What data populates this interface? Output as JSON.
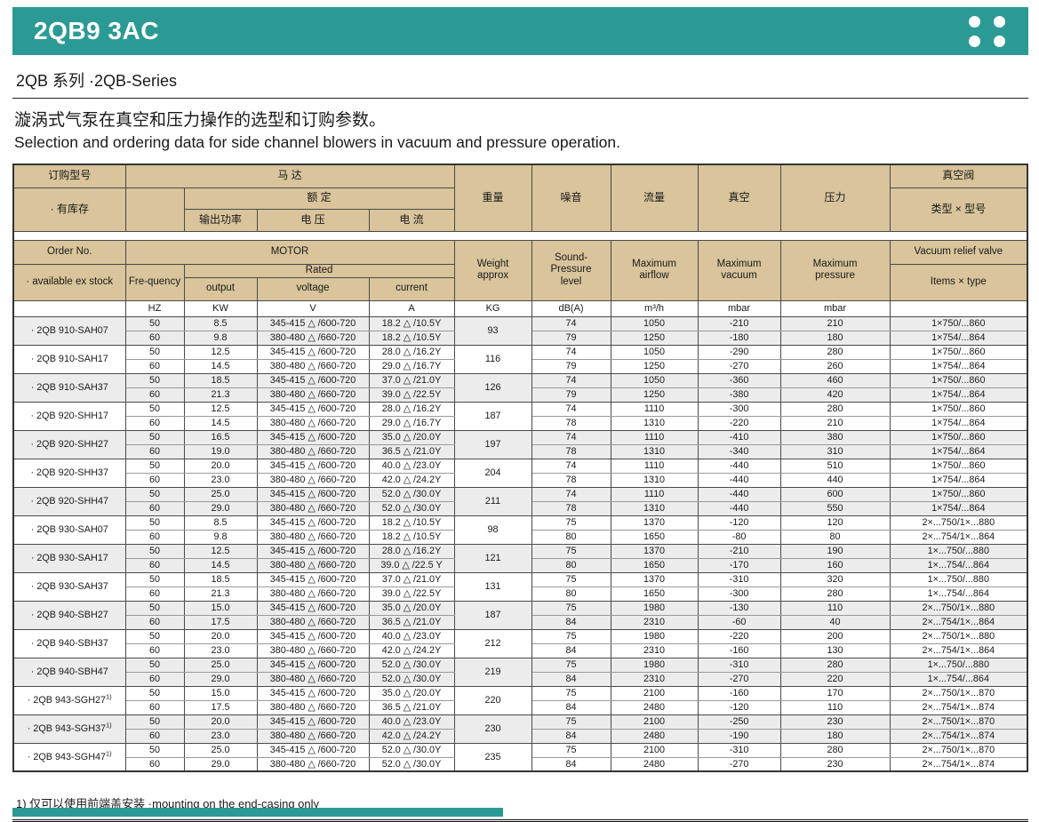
{
  "page": {
    "title": "2QB9 3AC",
    "series": "2QB 系列 ·2QB-Series",
    "intro_zh": "漩涡式气泵在真空和压力操作的选型和订购参数。",
    "intro_en": "Selection and ordering data for side channel blowers in vacuum and pressure operation.",
    "footnote": "1) 仅可以使用前端盖安装 ·mounting on the end-casing only"
  },
  "colors": {
    "teal": "#2c9a94",
    "header_tan": "#d9c49c",
    "row_shade": "#ececec"
  },
  "table": {
    "header_zh": {
      "order": "订购型号",
      "stock": "· 有库存",
      "motor": "马  达",
      "rated": "额  定",
      "output": "输出功率",
      "voltage": "电  压",
      "current": "电  流",
      "weight": "重量",
      "noise": "噪音",
      "flow": "流量",
      "vacuum": "真空",
      "pressure": "压力",
      "valve": "真空阀",
      "valve_type": "类型 × 型号"
    },
    "header_en": {
      "order": "Order No.",
      "stock": "· available ex stock",
      "frequency": "Fre-quency",
      "motor": "MOTOR",
      "rated": "Rated",
      "output": "output",
      "voltage": "voltage",
      "current": "current",
      "weight": "Weight\napprox",
      "noise": "Sound-\nPressure\nlevel",
      "flow": "Maximum\nairflow",
      "vacuum": "Maximum\nvacuum",
      "pressure": "Maximum\npressure",
      "valve": "Vacuum relief valve",
      "valve_type": "Items × type"
    },
    "units": [
      "",
      "HZ",
      "KW",
      "V",
      "A",
      "KG",
      "dB(A)",
      "m³/h",
      "mbar",
      "mbar",
      ""
    ],
    "models": [
      {
        "name": "· 2QB 910-SAH07",
        "sup": "",
        "weight": "93",
        "shaded": true,
        "rows": [
          {
            "freq": "50",
            "kw": "8.5",
            "volt": "345-415 △ /600-720",
            "amp": "18.2 △ /10.5Y",
            "db": "74",
            "flow": "1050",
            "vac": "-210",
            "press": "210",
            "valve": "1×750/...860"
          },
          {
            "freq": "60",
            "kw": "9.8",
            "volt": "380-480 △ /660-720",
            "amp": "18.2 △ /10.5Y",
            "db": "79",
            "flow": "1250",
            "vac": "-180",
            "press": "180",
            "valve": "1×754/...864"
          }
        ]
      },
      {
        "name": "· 2QB 910-SAH17",
        "sup": "",
        "weight": "116",
        "shaded": false,
        "rows": [
          {
            "freq": "50",
            "kw": "12.5",
            "volt": "345-415 △ /600-720",
            "amp": "28.0 △ /16.2Y",
            "db": "74",
            "flow": "1050",
            "vac": "-290",
            "press": "280",
            "valve": "1×750/...860"
          },
          {
            "freq": "60",
            "kw": "14.5",
            "volt": "380-480 △ /660-720",
            "amp": "29.0 △ /16.7Y",
            "db": "79",
            "flow": "1250",
            "vac": "-270",
            "press": "260",
            "valve": "1×754/...864"
          }
        ]
      },
      {
        "name": "· 2QB 910-SAH37",
        "sup": "",
        "weight": "126",
        "shaded": true,
        "rows": [
          {
            "freq": "50",
            "kw": "18.5",
            "volt": "345-415 △ /600-720",
            "amp": "37.0 △ /21.0Y",
            "db": "74",
            "flow": "1050",
            "vac": "-360",
            "press": "460",
            "valve": "1×750/...860"
          },
          {
            "freq": "60",
            "kw": "21.3",
            "volt": "380-480 △ /660-720",
            "amp": "39.0 △ /22.5Y",
            "db": "79",
            "flow": "1250",
            "vac": "-380",
            "press": "420",
            "valve": "1×754/...864"
          }
        ]
      },
      {
        "name": "· 2QB 920-SHH17",
        "sup": "",
        "weight": "187",
        "shaded": false,
        "rows": [
          {
            "freq": "50",
            "kw": "12.5",
            "volt": "345-415 △ /600-720",
            "amp": "28.0 △ /16.2Y",
            "db": "74",
            "flow": "1110",
            "vac": "-300",
            "press": "280",
            "valve": "1×750/...860"
          },
          {
            "freq": "60",
            "kw": "14.5",
            "volt": "380-480 △ /660-720",
            "amp": "29.0 △ /16.7Y",
            "db": "78",
            "flow": "1310",
            "vac": "-220",
            "press": "210",
            "valve": "1×754/...864"
          }
        ]
      },
      {
        "name": "· 2QB 920-SHH27",
        "sup": "",
        "weight": "197",
        "shaded": true,
        "rows": [
          {
            "freq": "50",
            "kw": "16.5",
            "volt": "345-415 △ /600-720",
            "amp": "35.0 △ /20.0Y",
            "db": "74",
            "flow": "1110",
            "vac": "-410",
            "press": "380",
            "valve": "1×750/...860"
          },
          {
            "freq": "60",
            "kw": "19.0",
            "volt": "380-480 △ /660-720",
            "amp": "36.5 △ /21.0Y",
            "db": "78",
            "flow": "1310",
            "vac": "-340",
            "press": "310",
            "valve": "1×754/...864"
          }
        ]
      },
      {
        "name": "· 2QB 920-SHH37",
        "sup": "",
        "weight": "204",
        "shaded": false,
        "rows": [
          {
            "freq": "50",
            "kw": "20.0",
            "volt": "345-415 △ /600-720",
            "amp": "40.0 △ /23.0Y",
            "db": "74",
            "flow": "1110",
            "vac": "-440",
            "press": "510",
            "valve": "1×750/...860"
          },
          {
            "freq": "60",
            "kw": "23.0",
            "volt": "380-480 △ /660-720",
            "amp": "42.0 △ /24.2Y",
            "db": "78",
            "flow": "1310",
            "vac": "-440",
            "press": "440",
            "valve": "1×754/...864"
          }
        ]
      },
      {
        "name": "· 2QB 920-SHH47",
        "sup": "",
        "weight": "211",
        "shaded": true,
        "rows": [
          {
            "freq": "50",
            "kw": "25.0",
            "volt": "345-415 △ /600-720",
            "amp": "52.0 △ /30.0Y",
            "db": "74",
            "flow": "1110",
            "vac": "-440",
            "press": "600",
            "valve": "1×750/...860"
          },
          {
            "freq": "60",
            "kw": "29.0",
            "volt": "380-480 △ /660-720",
            "amp": "52.0 △ /30.0Y",
            "db": "78",
            "flow": "1310",
            "vac": "-440",
            "press": "550",
            "valve": "1×754/...864"
          }
        ]
      },
      {
        "name": "· 2QB 930-SAH07",
        "sup": "",
        "weight": "98",
        "shaded": false,
        "rows": [
          {
            "freq": "50",
            "kw": "8.5",
            "volt": "345-415 △ /600-720",
            "amp": "18.2 △ /10.5Y",
            "db": "75",
            "flow": "1370",
            "vac": "-120",
            "press": "120",
            "valve": "2×...750/1×...880"
          },
          {
            "freq": "60",
            "kw": "9.8",
            "volt": "380-480 △ /660-720",
            "amp": "18.2 △ /10.5Y",
            "db": "80",
            "flow": "1650",
            "vac": "-80",
            "press": "80",
            "valve": "2×...754/1×...864"
          }
        ]
      },
      {
        "name": "· 2QB 930-SAH17",
        "sup": "",
        "weight": "121",
        "shaded": true,
        "rows": [
          {
            "freq": "50",
            "kw": "12.5",
            "volt": "345-415 △ /600-720",
            "amp": "28.0 △ /16.2Y",
            "db": "75",
            "flow": "1370",
            "vac": "-210",
            "press": "190",
            "valve": "1×...750/...880"
          },
          {
            "freq": "60",
            "kw": "14.5",
            "volt": "380-480 △ /660-720",
            "amp": "39.0 △ /22.5 Y",
            "db": "80",
            "flow": "1650",
            "vac": "-170",
            "press": "160",
            "valve": "1×...754/...864"
          }
        ]
      },
      {
        "name": "· 2QB 930-SAH37",
        "sup": "",
        "weight": "131",
        "shaded": false,
        "rows": [
          {
            "freq": "50",
            "kw": "18.5",
            "volt": "345-415 △ /600-720",
            "amp": "37.0 △ /21.0Y",
            "db": "75",
            "flow": "1370",
            "vac": "-310",
            "press": "320",
            "valve": "1×...750/...880"
          },
          {
            "freq": "60",
            "kw": "21.3",
            "volt": "380-480 △ /660-720",
            "amp": "39.0 △ /22.5Y",
            "db": "80",
            "flow": "1650",
            "vac": "-300",
            "press": "280",
            "valve": "1×...754/...864"
          }
        ]
      },
      {
        "name": "· 2QB 940-SBH27",
        "sup": "",
        "weight": "187",
        "shaded": true,
        "rows": [
          {
            "freq": "50",
            "kw": "15.0",
            "volt": "345-415 △ /600-720",
            "amp": "35.0 △ /20.0Y",
            "db": "75",
            "flow": "1980",
            "vac": "-130",
            "press": "110",
            "valve": "2×...750/1×...880"
          },
          {
            "freq": "60",
            "kw": "17.5",
            "volt": "380-480 △ /660-720",
            "amp": "36.5 △ /21.0Y",
            "db": "84",
            "flow": "2310",
            "vac": "-60",
            "press": "40",
            "valve": "2×...754/1×...864"
          }
        ]
      },
      {
        "name": "· 2QB 940-SBH37",
        "sup": "",
        "weight": "212",
        "shaded": false,
        "rows": [
          {
            "freq": "50",
            "kw": "20.0",
            "volt": "345-415 △ /600-720",
            "amp": "40.0 △ /23.0Y",
            "db": "75",
            "flow": "1980",
            "vac": "-220",
            "press": "200",
            "valve": "2×...750/1×...880"
          },
          {
            "freq": "60",
            "kw": "23.0",
            "volt": "380-480 △ /660-720",
            "amp": "42.0 △ /24.2Y",
            "db": "84",
            "flow": "2310",
            "vac": "-160",
            "press": "130",
            "valve": "2×...754/1×...864"
          }
        ]
      },
      {
        "name": "· 2QB 940-SBH47",
        "sup": "",
        "weight": "219",
        "shaded": true,
        "rows": [
          {
            "freq": "50",
            "kw": "25.0",
            "volt": "345-415 △ /600-720",
            "amp": "52.0 △ /30.0Y",
            "db": "75",
            "flow": "1980",
            "vac": "-310",
            "press": "280",
            "valve": "1×...750/...880"
          },
          {
            "freq": "60",
            "kw": "29.0",
            "volt": "380-480 △ /660-720",
            "amp": "52.0 △ /30.0Y",
            "db": "84",
            "flow": "2310",
            "vac": "-270",
            "press": "220",
            "valve": "1×...754/...864"
          }
        ]
      },
      {
        "name": "· 2QB 943-SGH27",
        "sup": "1)",
        "weight": "220",
        "shaded": false,
        "rows": [
          {
            "freq": "50",
            "kw": "15.0",
            "volt": "345-415 △ /600-720",
            "amp": "35.0 △ /20.0Y",
            "db": "75",
            "flow": "2100",
            "vac": "-160",
            "press": "170",
            "valve": "2×...750/1×...870"
          },
          {
            "freq": "60",
            "kw": "17.5",
            "volt": "380-480 △ /660-720",
            "amp": "36.5 △ /21.0Y",
            "db": "84",
            "flow": "2480",
            "vac": "-120",
            "press": "110",
            "valve": "2×...754/1×...874"
          }
        ]
      },
      {
        "name": "· 2QB 943-SGH37",
        "sup": "1)",
        "weight": "230",
        "shaded": true,
        "rows": [
          {
            "freq": "50",
            "kw": "20.0",
            "volt": "345-415 △ /600-720",
            "amp": "40.0 △ /23.0Y",
            "db": "75",
            "flow": "2100",
            "vac": "-250",
            "press": "230",
            "valve": "2×...750/1×...870"
          },
          {
            "freq": "60",
            "kw": "23.0",
            "volt": "380-480 △ /660-720",
            "amp": "42.0 △ /24.2Y",
            "db": "84",
            "flow": "2480",
            "vac": "-190",
            "press": "180",
            "valve": "2×...754/1×...874"
          }
        ]
      },
      {
        "name": "· 2QB 943-SGH47",
        "sup": "1)",
        "weight": "235",
        "shaded": false,
        "rows": [
          {
            "freq": "50",
            "kw": "25.0",
            "volt": "345-415 △ /600-720",
            "amp": "52.0 △ /30.0Y",
            "db": "75",
            "flow": "2100",
            "vac": "-310",
            "press": "280",
            "valve": "2×...750/1×...870"
          },
          {
            "freq": "60",
            "kw": "29.0",
            "volt": "380-480 △ /660-720",
            "amp": "52.0 △ /30.0Y",
            "db": "84",
            "flow": "2480",
            "vac": "-270",
            "press": "230",
            "valve": "2×...754/1×...874"
          }
        ]
      }
    ]
  }
}
